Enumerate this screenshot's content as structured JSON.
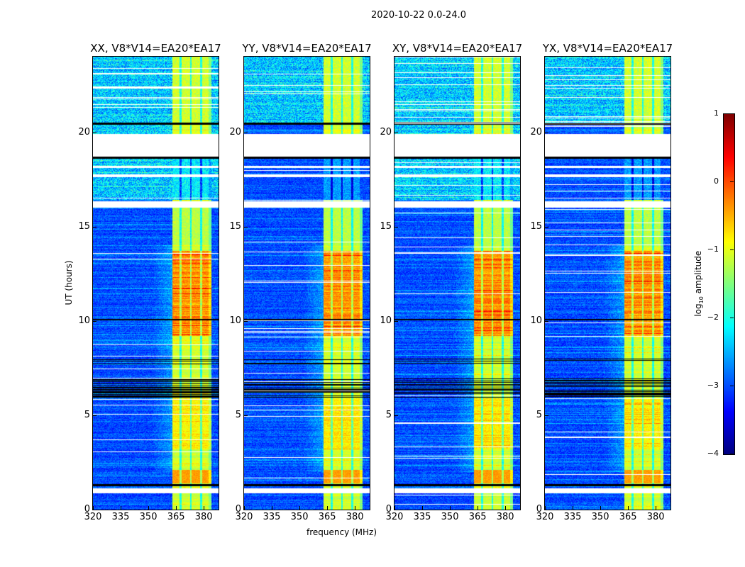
{
  "suptitle": "2020-10-22 0.0-24.0",
  "chart_data": {
    "type": "heatmap",
    "panels": [
      {
        "title": "XX, V8*V14=EA20*EA17",
        "pol": "XX"
      },
      {
        "title": "YY, V8*V14=EA20*EA17",
        "pol": "YY"
      },
      {
        "title": "XY, V8*V14=EA20*EA17",
        "pol": "XY"
      },
      {
        "title": "YX, V8*V14=EA20*EA17",
        "pol": "YX"
      }
    ],
    "xlabel": "frequency (MHz)",
    "ylabel": "UT (hours)",
    "xlim": [
      320,
      388
    ],
    "ylim": [
      0,
      24
    ],
    "xticks": [
      "320",
      "335",
      "350",
      "365",
      "380"
    ],
    "xtick_values": [
      320,
      335,
      350,
      365,
      380
    ],
    "yticks": [
      "0",
      "5",
      "10",
      "15",
      "20"
    ],
    "ytick_values": [
      0,
      5,
      10,
      15,
      20
    ],
    "colorbar": {
      "label_main": "log",
      "label_sub": "10",
      "label_rest": " amplitude",
      "range": [
        -4,
        1
      ],
      "colormap": "jet",
      "ticks": [
        "1",
        "0",
        "−1",
        "−2",
        "−3",
        "−4"
      ],
      "tick_values": [
        1,
        0,
        -1,
        -2,
        -3,
        -4
      ]
    },
    "signal_band_mhz": [
      363,
      384
    ],
    "subband_gaps_mhz": [
      367.5,
      373,
      378.5
    ],
    "flagged_hours": [
      [
        18.7,
        19.9
      ],
      [
        16.0,
        16.35
      ],
      [
        0.88,
        1.12
      ],
      [
        17.6,
        17.75
      ],
      [
        18.1,
        18.2
      ]
    ],
    "strong_rfi_hours": [
      9.2,
      13.7
    ]
  }
}
